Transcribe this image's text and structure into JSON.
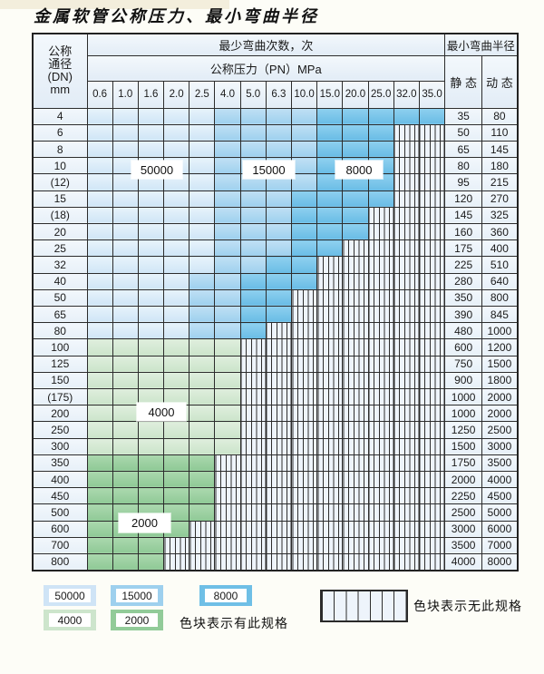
{
  "page": {
    "title": "金属软管公称压力、最小弯曲半径"
  },
  "table": {
    "dn_header_lines": [
      "公称",
      "通径",
      "(DN)",
      "mm"
    ],
    "bend_cycles_header": "最少弯曲次数，次",
    "pressure_header": "公称压力（PN）MPa",
    "radius_header": "最小弯曲半径",
    "static_header": "静 态",
    "dynamic_header": "动 态",
    "pressure_columns": [
      "0.6",
      "1.0",
      "1.6",
      "2.0",
      "2.5",
      "4.0",
      "5.0",
      "6.3",
      "10.0",
      "15.0",
      "20.0",
      "25.0",
      "32.0",
      "35.0"
    ],
    "spec_colors": {
      "b1": "#cfe4f6",
      "b2": "#9ed0ee",
      "b3": "#6fbfe6",
      "g1": "#cde5cc",
      "g2": "#92cb99"
    },
    "spec_values": {
      "b1": "50000",
      "b2": "15000",
      "b3": "8000",
      "g1": "4000",
      "g2": "2000"
    },
    "zone_labels": [
      {
        "text": "50000",
        "over": "DN10 @ 1.6-2.0"
      },
      {
        "text": "15000",
        "over": "DN10 @ 5.0-6.3"
      },
      {
        "text": "8000",
        "over": "DN10 @ 15.0-20.0"
      },
      {
        "text": "4000",
        "over": "DN200 @ 1.6-2.0"
      },
      {
        "text": "2000",
        "over": "DN500/600 @ 1.0-1.6"
      }
    ],
    "rows": [
      {
        "dn": "4",
        "static": "35",
        "dynamic": "80",
        "cells": [
          "b1",
          "b1",
          "b1",
          "b1",
          "b1",
          "b2",
          "b2",
          "b2",
          "b2",
          "b3",
          "b3",
          "b3",
          "b3",
          "b3"
        ]
      },
      {
        "dn": "6",
        "static": "50",
        "dynamic": "110",
        "cells": [
          "b1",
          "b1",
          "b1",
          "b1",
          "b1",
          "b2",
          "b2",
          "b2",
          "b2",
          "b3",
          "b3",
          "b3",
          "x",
          "x"
        ]
      },
      {
        "dn": "8",
        "static": "65",
        "dynamic": "145",
        "cells": [
          "b1",
          "b1",
          "b1",
          "b1",
          "b1",
          "b2",
          "b2",
          "b2",
          "b2",
          "b3",
          "b3",
          "b3",
          "x",
          "x"
        ]
      },
      {
        "dn": "10",
        "static": "80",
        "dynamic": "180",
        "cells": [
          "b1",
          "b1",
          "b1",
          "b1",
          "b1",
          "b2",
          "b2",
          "b2",
          "b2",
          "b3",
          "b3",
          "b3",
          "x",
          "x"
        ]
      },
      {
        "dn": "(12)",
        "static": "95",
        "dynamic": "215",
        "cells": [
          "b1",
          "b1",
          "b1",
          "b1",
          "b1",
          "b2",
          "b2",
          "b2",
          "b2",
          "b3",
          "b3",
          "b3",
          "x",
          "x"
        ]
      },
      {
        "dn": "15",
        "static": "120",
        "dynamic": "270",
        "cells": [
          "b1",
          "b1",
          "b1",
          "b1",
          "b1",
          "b2",
          "b2",
          "b2",
          "b3",
          "b3",
          "b3",
          "b3",
          "x",
          "x"
        ]
      },
      {
        "dn": "(18)",
        "static": "145",
        "dynamic": "325",
        "cells": [
          "b1",
          "b1",
          "b1",
          "b1",
          "b1",
          "b2",
          "b2",
          "b2",
          "b3",
          "b3",
          "b3",
          "x",
          "x",
          "x"
        ]
      },
      {
        "dn": "20",
        "static": "160",
        "dynamic": "360",
        "cells": [
          "b1",
          "b1",
          "b1",
          "b1",
          "b1",
          "b2",
          "b2",
          "b2",
          "b3",
          "b3",
          "b3",
          "x",
          "x",
          "x"
        ]
      },
      {
        "dn": "25",
        "static": "175",
        "dynamic": "400",
        "cells": [
          "b1",
          "b1",
          "b1",
          "b1",
          "b1",
          "b2",
          "b2",
          "b2",
          "b3",
          "b3",
          "x",
          "x",
          "x",
          "x"
        ]
      },
      {
        "dn": "32",
        "static": "225",
        "dynamic": "510",
        "cells": [
          "b1",
          "b1",
          "b1",
          "b1",
          "b1",
          "b2",
          "b2",
          "b3",
          "b3",
          "x",
          "x",
          "x",
          "x",
          "x"
        ]
      },
      {
        "dn": "40",
        "static": "280",
        "dynamic": "640",
        "cells": [
          "b1",
          "b1",
          "b1",
          "b1",
          "b2",
          "b2",
          "b3",
          "b3",
          "b3",
          "x",
          "x",
          "x",
          "x",
          "x"
        ]
      },
      {
        "dn": "50",
        "static": "350",
        "dynamic": "800",
        "cells": [
          "b1",
          "b1",
          "b1",
          "b1",
          "b2",
          "b2",
          "b3",
          "b3",
          "x",
          "x",
          "x",
          "x",
          "x",
          "x"
        ]
      },
      {
        "dn": "65",
        "static": "390",
        "dynamic": "845",
        "cells": [
          "b1",
          "b1",
          "b1",
          "b1",
          "b2",
          "b2",
          "b3",
          "b3",
          "x",
          "x",
          "x",
          "x",
          "x",
          "x"
        ]
      },
      {
        "dn": "80",
        "static": "480",
        "dynamic": "1000",
        "cells": [
          "b1",
          "b1",
          "b1",
          "b1",
          "b2",
          "b2",
          "b3",
          "x",
          "x",
          "x",
          "x",
          "x",
          "x",
          "x"
        ]
      },
      {
        "dn": "100",
        "static": "600",
        "dynamic": "1200",
        "cells": [
          "g1",
          "g1",
          "g1",
          "g1",
          "g1",
          "g1",
          "x",
          "x",
          "x",
          "x",
          "x",
          "x",
          "x",
          "x"
        ]
      },
      {
        "dn": "125",
        "static": "750",
        "dynamic": "1500",
        "cells": [
          "g1",
          "g1",
          "g1",
          "g1",
          "g1",
          "g1",
          "x",
          "x",
          "x",
          "x",
          "x",
          "x",
          "x",
          "x"
        ]
      },
      {
        "dn": "150",
        "static": "900",
        "dynamic": "1800",
        "cells": [
          "g1",
          "g1",
          "g1",
          "g1",
          "g1",
          "g1",
          "x",
          "x",
          "x",
          "x",
          "x",
          "x",
          "x",
          "x"
        ]
      },
      {
        "dn": "(175)",
        "static": "1000",
        "dynamic": "2000",
        "cells": [
          "g1",
          "g1",
          "g1",
          "g1",
          "g1",
          "g1",
          "x",
          "x",
          "x",
          "x",
          "x",
          "x",
          "x",
          "x"
        ]
      },
      {
        "dn": "200",
        "static": "1000",
        "dynamic": "2000",
        "cells": [
          "g1",
          "g1",
          "g1",
          "g1",
          "g1",
          "g1",
          "x",
          "x",
          "x",
          "x",
          "x",
          "x",
          "x",
          "x"
        ]
      },
      {
        "dn": "250",
        "static": "1250",
        "dynamic": "2500",
        "cells": [
          "g1",
          "g1",
          "g1",
          "g1",
          "g1",
          "g1",
          "x",
          "x",
          "x",
          "x",
          "x",
          "x",
          "x",
          "x"
        ]
      },
      {
        "dn": "300",
        "static": "1500",
        "dynamic": "3000",
        "cells": [
          "g1",
          "g1",
          "g1",
          "g1",
          "g1",
          "g1",
          "x",
          "x",
          "x",
          "x",
          "x",
          "x",
          "x",
          "x"
        ]
      },
      {
        "dn": "350",
        "static": "1750",
        "dynamic": "3500",
        "cells": [
          "g2",
          "g2",
          "g2",
          "g2",
          "g2",
          "x",
          "x",
          "x",
          "x",
          "x",
          "x",
          "x",
          "x",
          "x"
        ]
      },
      {
        "dn": "400",
        "static": "2000",
        "dynamic": "4000",
        "cells": [
          "g2",
          "g2",
          "g2",
          "g2",
          "g2",
          "x",
          "x",
          "x",
          "x",
          "x",
          "x",
          "x",
          "x",
          "x"
        ]
      },
      {
        "dn": "450",
        "static": "2250",
        "dynamic": "4500",
        "cells": [
          "g2",
          "g2",
          "g2",
          "g2",
          "g2",
          "x",
          "x",
          "x",
          "x",
          "x",
          "x",
          "x",
          "x",
          "x"
        ]
      },
      {
        "dn": "500",
        "static": "2500",
        "dynamic": "5000",
        "cells": [
          "g2",
          "g2",
          "g2",
          "g2",
          "g2",
          "x",
          "x",
          "x",
          "x",
          "x",
          "x",
          "x",
          "x",
          "x"
        ]
      },
      {
        "dn": "600",
        "static": "3000",
        "dynamic": "6000",
        "cells": [
          "g2",
          "g2",
          "g2",
          "g2",
          "x",
          "x",
          "x",
          "x",
          "x",
          "x",
          "x",
          "x",
          "x",
          "x"
        ]
      },
      {
        "dn": "700",
        "static": "3500",
        "dynamic": "7000",
        "cells": [
          "g2",
          "g2",
          "g2",
          "x",
          "x",
          "x",
          "x",
          "x",
          "x",
          "x",
          "x",
          "x",
          "x",
          "x"
        ]
      },
      {
        "dn": "800",
        "static": "4000",
        "dynamic": "8000",
        "cells": [
          "g2",
          "g2",
          "g2",
          "x",
          "x",
          "x",
          "x",
          "x",
          "x",
          "x",
          "x",
          "x",
          "x",
          "x"
        ]
      }
    ]
  },
  "legend": {
    "items": [
      {
        "label": "50000",
        "key": "b1"
      },
      {
        "label": "15000",
        "key": "b2"
      },
      {
        "label": "8000",
        "key": "b3"
      },
      {
        "label": "4000",
        "key": "g1"
      },
      {
        "label": "2000",
        "key": "g2"
      }
    ],
    "present_note": "色块表示有此规格",
    "absent_note": "色块表示无此规格"
  }
}
